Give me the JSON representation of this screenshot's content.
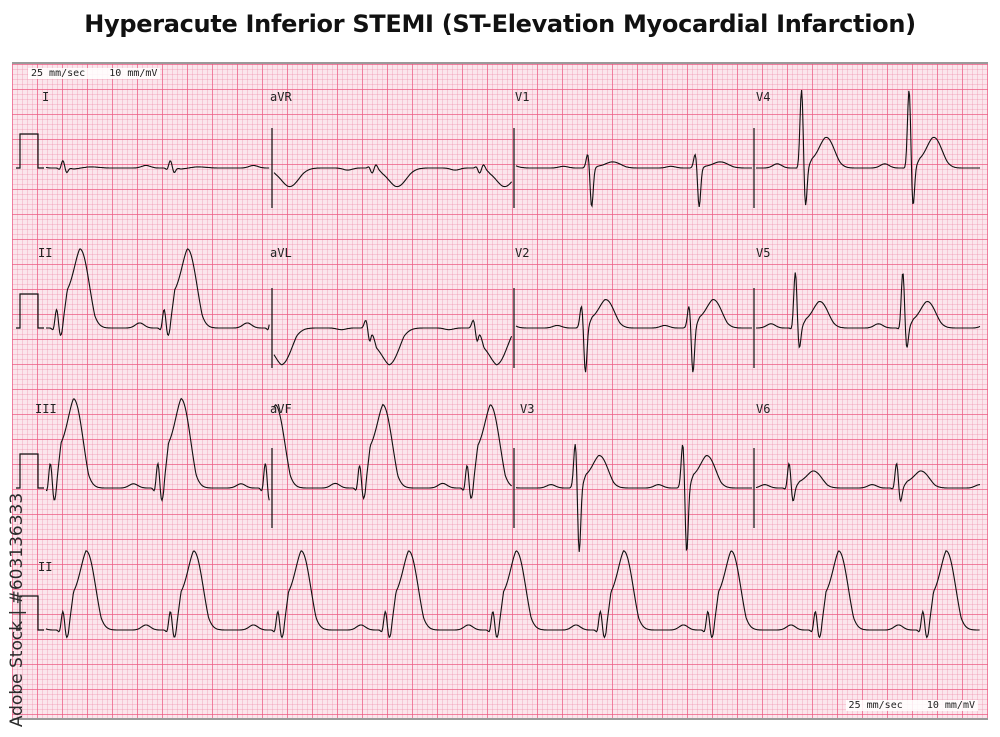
{
  "title": "Hyperacute Inferior STEMI (ST-Elevation Myocardial Infarction)",
  "calibration": {
    "paper_speed": "25 mm/sec",
    "gain": "10 mm/mV"
  },
  "leads": {
    "I": "I",
    "aVR": "aVR",
    "V1": "V1",
    "V4": "V4",
    "II": "II",
    "aVL": "aVL",
    "V2": "V2",
    "V5": "V5",
    "III": "III",
    "aVF": "aVF",
    "V3": "V3",
    "V6": "V6",
    "rhythm": "II"
  },
  "layout_rows": [
    [
      "I",
      "aVR",
      "V1",
      "V4"
    ],
    [
      "II",
      "aVL",
      "V2",
      "V5"
    ],
    [
      "III",
      "aVF",
      "V3",
      "V6"
    ]
  ],
  "rhythm_strip_lead": "II",
  "grid_colors": {
    "paper": "#fbe6ec",
    "major": "#ec5a82",
    "minor": "#f08caa",
    "trace": "#111111"
  },
  "watermark": "Adobe Stock | #603136333"
}
